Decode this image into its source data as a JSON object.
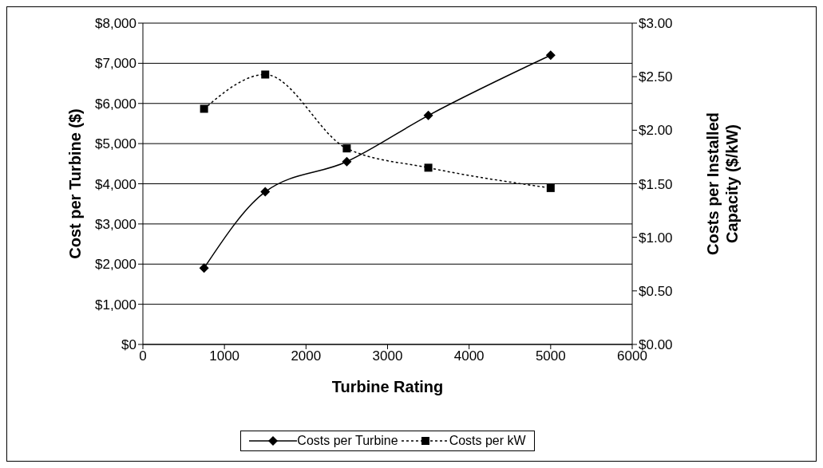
{
  "chart_data": {
    "type": "line",
    "xlabel": "Turbine Rating",
    "ylabel": "Cost per Turbine ($)",
    "y2label": "Costs per Installed Capacity ($/kW)",
    "x": [
      750,
      1500,
      2500,
      3500,
      5000
    ],
    "series": [
      {
        "name": "Costs per Turbine",
        "color": "#000000",
        "values": [
          1900,
          3800,
          4550,
          5700,
          7200
        ],
        "marker": "diamond",
        "line_style": "solid"
      },
      {
        "name": "Costs per kW",
        "color": "#000000",
        "values": [
          2.2,
          2.52,
          1.83,
          1.65,
          1.46
        ],
        "axis": "y2",
        "marker": "square",
        "line_style": "dotted"
      }
    ],
    "xlim": [
      0,
      6000
    ],
    "xticks": [
      0,
      1000,
      2000,
      3000,
      4000,
      5000,
      6000
    ],
    "ylim": [
      0,
      8000
    ],
    "yticks": [
      {
        "value": 0,
        "label": "$0"
      },
      {
        "value": 1000,
        "label": "$1,000"
      },
      {
        "value": 2000,
        "label": "$2,000"
      },
      {
        "value": 3000,
        "label": "$3,000"
      },
      {
        "value": 4000,
        "label": "$4,000"
      },
      {
        "value": 5000,
        "label": "$5,000"
      },
      {
        "value": 6000,
        "label": "$6,000"
      },
      {
        "value": 7000,
        "label": "$7,000"
      },
      {
        "value": 8000,
        "label": "$8,000"
      }
    ],
    "y2lim": [
      0,
      3
    ],
    "y2ticks": [
      {
        "value": 0,
        "label": "$0.00"
      },
      {
        "value": 0.5,
        "label": "$0.50"
      },
      {
        "value": 1,
        "label": "$1.00"
      },
      {
        "value": 1.5,
        "label": "$1.50"
      },
      {
        "value": 2,
        "label": "$2.00"
      },
      {
        "value": 2.5,
        "label": "$2.50"
      },
      {
        "value": 3,
        "label": "$3.00"
      }
    ],
    "grid": "y",
    "legend": "bottom"
  }
}
